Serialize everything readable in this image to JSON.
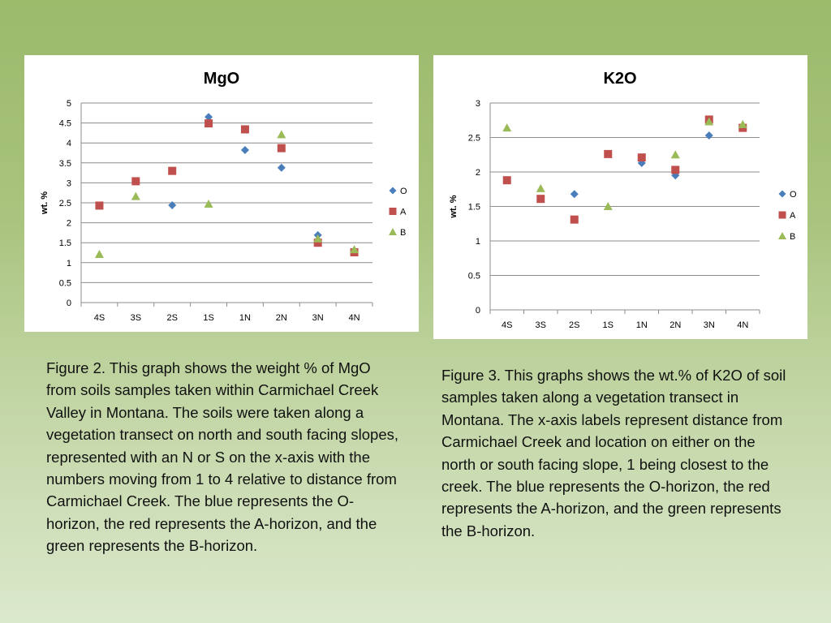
{
  "chart_data": [
    {
      "type": "scatter",
      "title": "MgO",
      "xlabel": "",
      "ylabel": "wt. %",
      "ylim": [
        0,
        5
      ],
      "yticks": [
        "0",
        "0.5",
        "1",
        "1.5",
        "2",
        "2.5",
        "3",
        "3.5",
        "4",
        "4.5",
        "5"
      ],
      "categories": [
        "4S",
        "3S",
        "2S",
        "1S",
        "1N",
        "2N",
        "3N",
        "4N"
      ],
      "grid": true,
      "legend_position": "right",
      "series": [
        {
          "name": "O",
          "marker": "diamond",
          "color": "#4a7ebb",
          "values": [
            null,
            null,
            2.44,
            4.65,
            3.82,
            3.38,
            1.69,
            1.28
          ]
        },
        {
          "name": "A",
          "marker": "square",
          "color": "#c0504d",
          "values": [
            2.43,
            3.04,
            3.3,
            4.49,
            4.34,
            3.87,
            1.5,
            1.26
          ]
        },
        {
          "name": "B",
          "marker": "triangle",
          "color": "#9bbb59",
          "values": [
            1.21,
            2.66,
            null,
            2.47,
            null,
            4.21,
            1.6,
            1.33
          ]
        }
      ]
    },
    {
      "type": "scatter",
      "title": "K2O",
      "xlabel": "",
      "ylabel": "wt. %",
      "ylim": [
        0,
        3
      ],
      "yticks": [
        "0",
        "0.5",
        "1",
        "1.5",
        "2",
        "2.5",
        "3"
      ],
      "categories": [
        "4S",
        "3S",
        "2S",
        "1S",
        "1N",
        "2N",
        "3N",
        "4N"
      ],
      "grid": true,
      "legend_position": "right",
      "series": [
        {
          "name": "O",
          "marker": "diamond",
          "color": "#4a7ebb",
          "values": [
            null,
            null,
            1.68,
            null,
            2.13,
            1.95,
            2.53,
            2.66
          ]
        },
        {
          "name": "A",
          "marker": "square",
          "color": "#c0504d",
          "values": [
            1.88,
            1.61,
            1.31,
            2.26,
            2.21,
            2.03,
            2.76,
            2.64
          ]
        },
        {
          "name": "B",
          "marker": "triangle",
          "color": "#9bbb59",
          "values": [
            2.64,
            1.76,
            null,
            1.5,
            null,
            2.25,
            2.73,
            2.69
          ]
        }
      ]
    }
  ],
  "captions": {
    "mgo": "Figure 2. This graph shows the weight % of MgO from soils samples taken within Carmichael Creek Valley in Montana. The soils were taken along a vegetation transect on north and south facing slopes, represented with an N or S on the x-axis with the numbers moving from 1 to 4 relative to distance from Carmichael Creek. The blue represents the O-horizon, the red represents the A-horizon, and the green represents the B-horizon.",
    "k2o": "Figure 3. This graphs shows the wt.% of K2O of soil samples taken along a vegetation transect in Montana. The x-axis labels represent distance from Carmichael Creek and location on either on the north or south facing slope, 1 being closest to the creek. The blue represents the O-horizon, the red represents the A-horizon, and the green represents the B-horizon."
  }
}
